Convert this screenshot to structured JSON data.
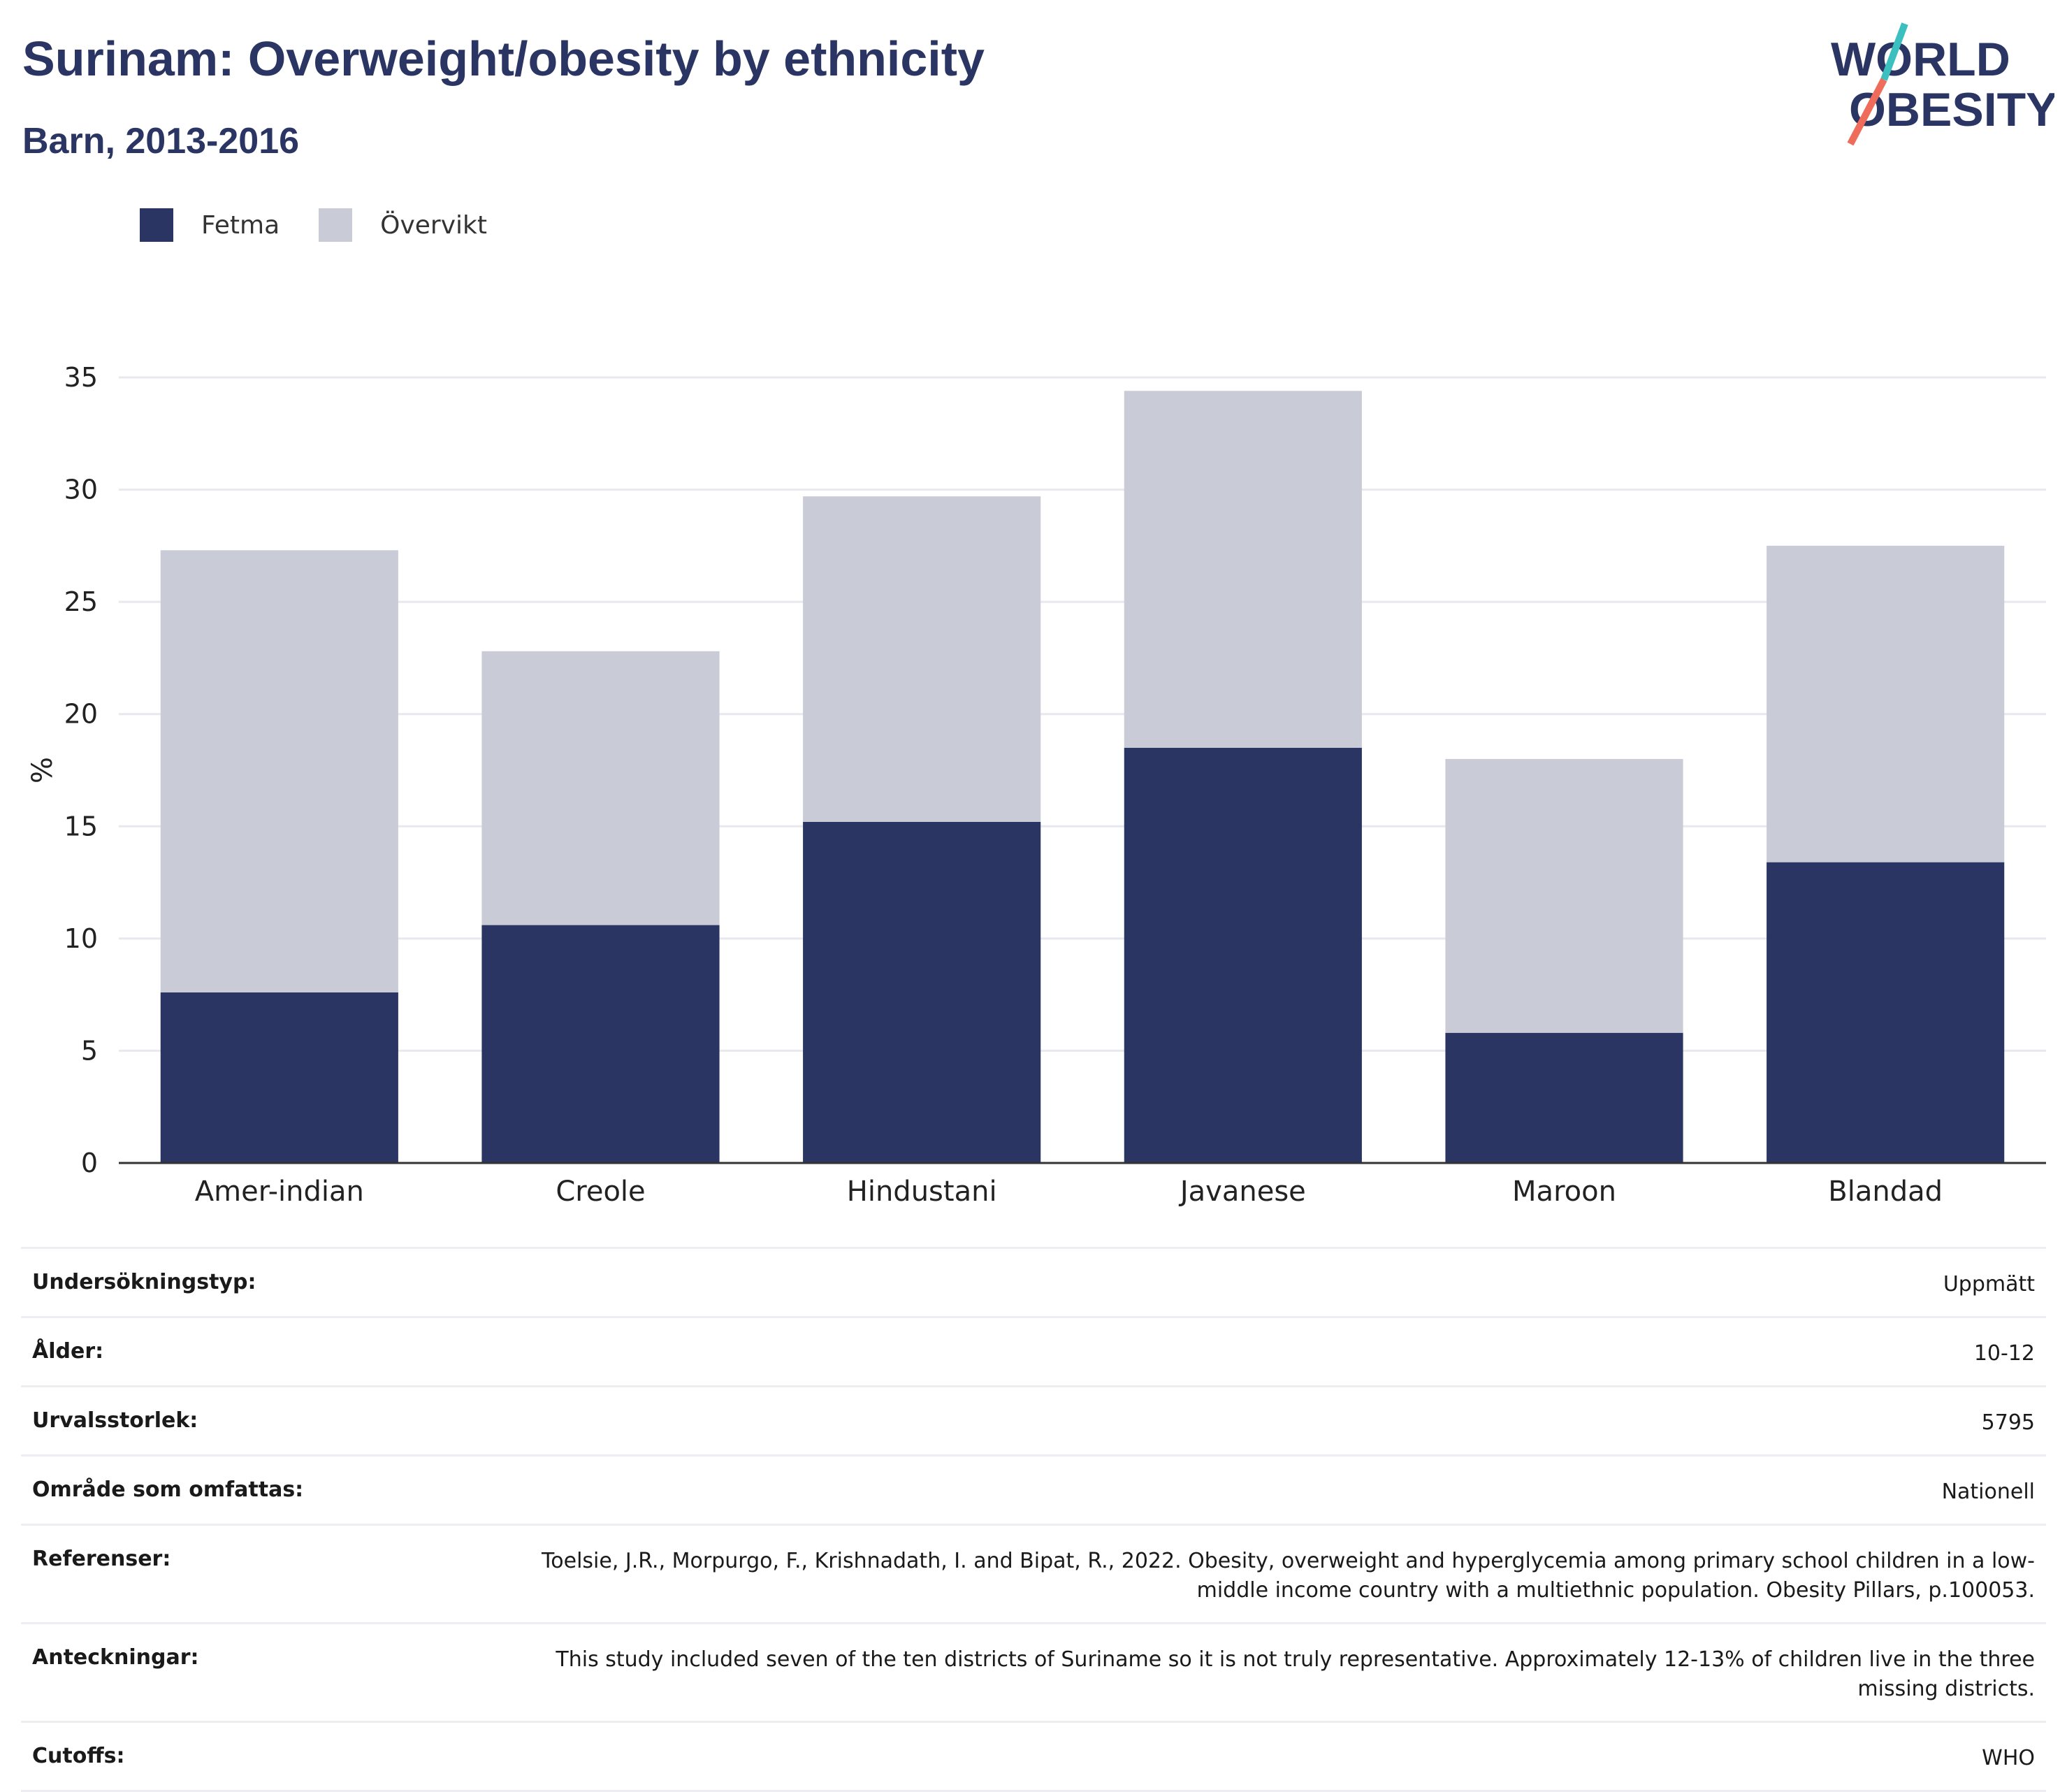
{
  "header": {
    "title": "Surinam: Overweight/obesity by ethnicity",
    "subtitle": "Barn, 2013-2016",
    "logo_line1": "WORLD",
    "logo_line2": "OBESITY"
  },
  "colors": {
    "fetma": "#2a3563",
    "overvikt": "#c9cbd7",
    "logo_teal": "#3bbfbf",
    "logo_coral": "#ef6b5a"
  },
  "chart_data": {
    "type": "bar",
    "stacked": true,
    "categories": [
      "Amer-indian",
      "Creole",
      "Hindustani",
      "Javanese",
      "Maroon",
      "Blandad"
    ],
    "series": [
      {
        "name": "Fetma",
        "values": [
          7.6,
          10.6,
          15.2,
          18.5,
          5.8,
          13.4
        ]
      },
      {
        "name": "Övervikt",
        "values": [
          19.7,
          12.2,
          14.5,
          15.9,
          12.2,
          14.1
        ]
      }
    ],
    "ylabel": "%",
    "ylim": [
      0,
      35
    ],
    "yticks": [
      0,
      5,
      10,
      15,
      20,
      25,
      30,
      35
    ],
    "grid": true,
    "legend_position": "top-left"
  },
  "meta": [
    {
      "label": "Undersökningstyp:",
      "value": "Uppmätt"
    },
    {
      "label": "Ålder:",
      "value": "10-12"
    },
    {
      "label": "Urvalsstorlek:",
      "value": "5795"
    },
    {
      "label": "Område som omfattas:",
      "value": "Nationell"
    },
    {
      "label": "Referenser:",
      "value": "Toelsie, J.R., Morpurgo, F., Krishnadath, I. and Bipat, R., 2022. Obesity, overweight and hyperglycemia among primary school children in a low-middle income country with a multiethnic population. Obesity Pillars, p.100053."
    },
    {
      "label": "Anteckningar:",
      "value": "This study included seven of the ten districts of Suriname so it is not truly representative. Approximately 12-13% of children live in the three missing districts."
    },
    {
      "label": "Cutoffs:",
      "value": "WHO"
    }
  ]
}
